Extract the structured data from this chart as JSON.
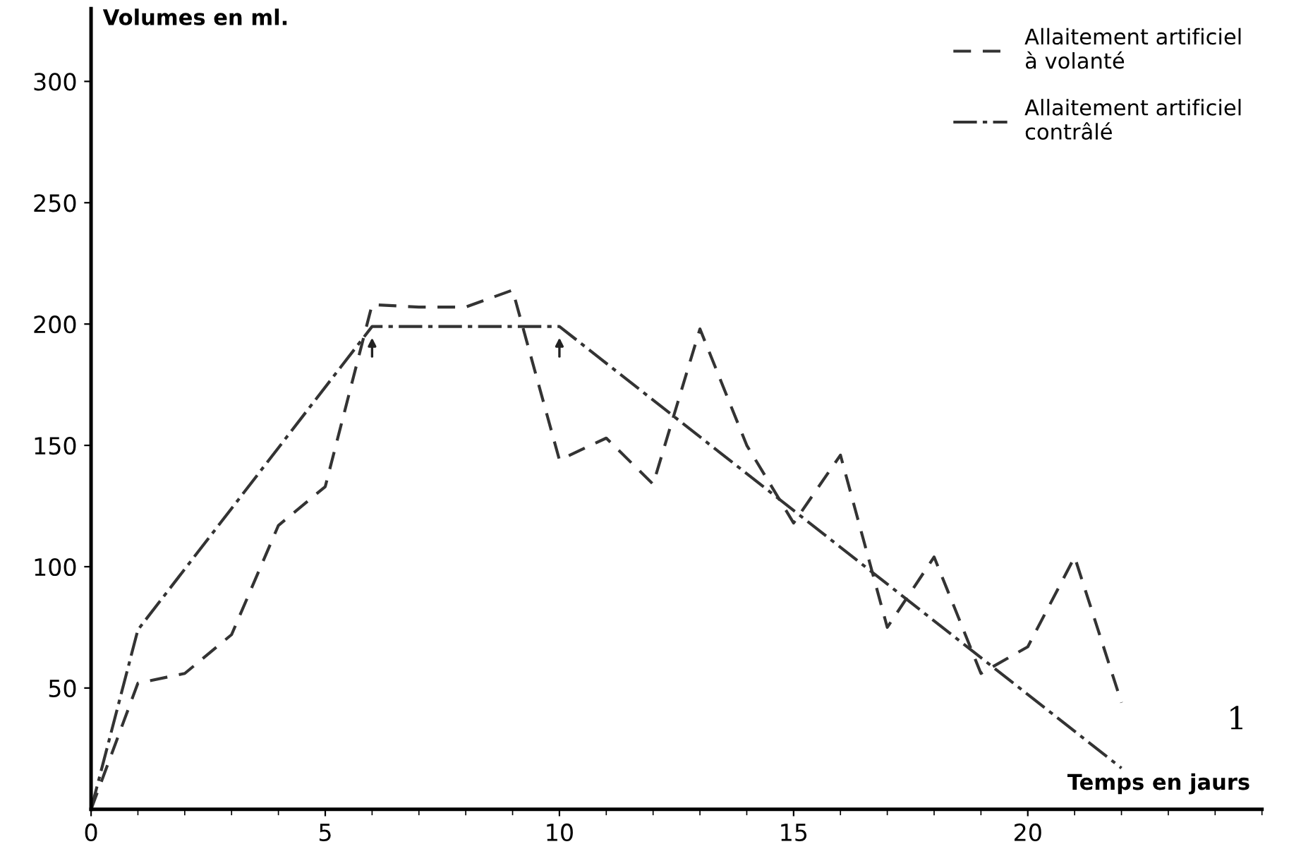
{
  "chart_data": {
    "type": "line",
    "xlabel": "Temps en jaurs",
    "ylabel": "Volumes en ml.",
    "x": [
      0,
      1,
      2,
      3,
      4,
      5,
      6,
      7,
      8,
      9,
      10,
      11,
      12,
      13,
      14,
      15,
      16,
      17,
      18,
      19,
      20,
      21,
      22
    ],
    "series": [
      {
        "name": "Allaitement artificiel\nà volanté",
        "color": "#333333",
        "line_style": "dashed",
        "values": [
          0,
          52,
          56,
          72,
          117,
          133,
          208,
          207,
          207,
          214,
          144,
          153,
          134,
          198,
          150,
          118,
          146,
          75,
          104,
          56,
          67,
          104,
          44
        ]
      },
      {
        "name": "Allaitement artificiel\ncontrâlé",
        "color": "#333333",
        "line_style": "dashdot",
        "x": [
          0,
          1,
          6,
          10,
          22
        ],
        "values": [
          0,
          74,
          199,
          199,
          17
        ]
      }
    ],
    "xlim": [
      0,
      25
    ],
    "ylim": [
      0,
      330
    ],
    "xticks": [
      0,
      5,
      10,
      15,
      20
    ],
    "yticks": [
      50,
      100,
      150,
      200,
      250,
      300
    ],
    "grid": false,
    "legend": "top right",
    "marker": "none",
    "annotations": [
      "1"
    ]
  }
}
